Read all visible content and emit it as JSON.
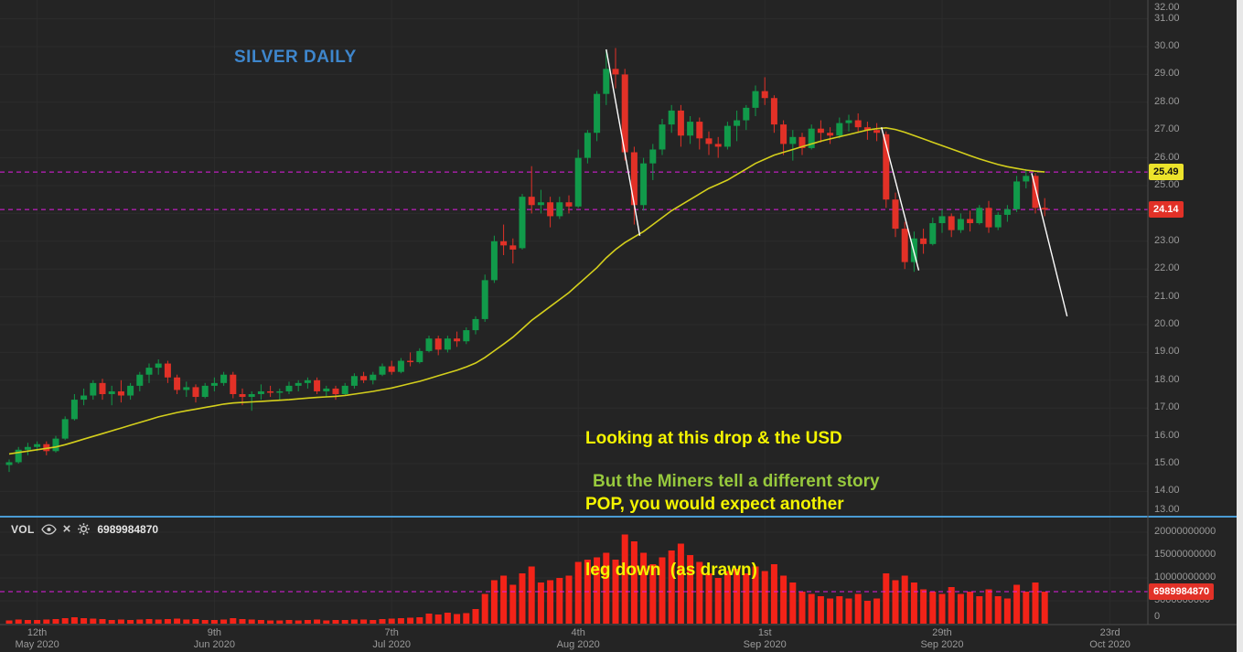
{
  "title": "SILVER DAILY",
  "annotations": {
    "yellow_lines": [
      "Looking at this drop & the USD",
      "POP, you would expect another",
      "leg down  (as drawn)"
    ],
    "green_note": "But the Miners tell a different story"
  },
  "volume_legend": {
    "label": "VOL",
    "value": "6989984870"
  },
  "price_axis": {
    "ticks": [
      "32.00",
      "31.00",
      "30.00",
      "29.00",
      "28.00",
      "27.00",
      "26.00",
      "25.00",
      "24.00",
      "23.00",
      "22.00",
      "21.00",
      "20.00",
      "19.00",
      "18.00",
      "17.00",
      "16.00",
      "15.00",
      "14.00",
      "13.00"
    ]
  },
  "volume_axis": {
    "ticks": [
      "20000000000",
      "15000000000",
      "10000000000",
      "5000000000",
      "0"
    ]
  },
  "chart_data": {
    "type": "candlestick",
    "title": "SILVER DAILY",
    "timeframe": "Daily",
    "x_labels": [
      {
        "i": 3,
        "day": "12th",
        "month": "May 2020"
      },
      {
        "i": 22,
        "day": "9th",
        "month": "Jun 2020"
      },
      {
        "i": 41,
        "day": "7th",
        "month": "Jul 2020"
      },
      {
        "i": 61,
        "day": "4th",
        "month": "Aug 2020"
      },
      {
        "i": 81,
        "day": "1st",
        "month": "Sep 2020"
      },
      {
        "i": 100,
        "day": "29th",
        "month": "Sep 2020"
      },
      {
        "i": 118,
        "day": "23rd",
        "month": "Oct 2020"
      }
    ],
    "price_range_visible": [
      13.1,
      31.7
    ],
    "volume_range_visible_billions": [
      0,
      23
    ],
    "candles_format": [
      "open",
      "high",
      "low",
      "close",
      "volume_billions",
      "ma_value"
    ],
    "candles": [
      [
        14.95,
        15.15,
        14.7,
        15.05,
        0.7,
        15.35
      ],
      [
        15.05,
        15.6,
        15.0,
        15.5,
        0.9,
        15.4
      ],
      [
        15.5,
        15.75,
        15.3,
        15.6,
        0.8,
        15.45
      ],
      [
        15.6,
        15.8,
        15.45,
        15.7,
        0.8,
        15.5
      ],
      [
        15.7,
        15.8,
        15.3,
        15.45,
        0.9,
        15.55
      ],
      [
        15.45,
        16.0,
        15.4,
        15.9,
        1.0,
        15.6
      ],
      [
        15.9,
        16.7,
        15.85,
        16.6,
        1.2,
        15.68
      ],
      [
        16.6,
        17.5,
        16.55,
        17.3,
        1.4,
        15.78
      ],
      [
        17.3,
        17.7,
        17.1,
        17.45,
        1.2,
        15.88
      ],
      [
        17.45,
        18.0,
        17.3,
        17.9,
        1.1,
        15.98
      ],
      [
        17.9,
        18.05,
        17.3,
        17.5,
        1.0,
        16.08
      ],
      [
        17.5,
        17.8,
        17.1,
        17.6,
        0.8,
        16.18
      ],
      [
        17.6,
        18.0,
        17.2,
        17.45,
        0.9,
        16.28
      ],
      [
        17.45,
        17.9,
        17.3,
        17.8,
        0.8,
        16.38
      ],
      [
        17.8,
        18.3,
        17.6,
        18.2,
        0.9,
        16.48
      ],
      [
        18.2,
        18.6,
        17.9,
        18.45,
        1.0,
        16.58
      ],
      [
        18.45,
        18.75,
        18.2,
        18.6,
        0.9,
        16.68
      ],
      [
        18.6,
        18.7,
        17.9,
        18.1,
        1.0,
        16.76
      ],
      [
        18.1,
        18.2,
        17.5,
        17.65,
        1.1,
        16.84
      ],
      [
        17.65,
        17.95,
        17.4,
        17.75,
        0.9,
        16.9
      ],
      [
        17.75,
        17.85,
        17.2,
        17.4,
        1.0,
        16.96
      ],
      [
        17.4,
        17.9,
        17.35,
        17.8,
        0.8,
        17.02
      ],
      [
        17.8,
        18.1,
        17.6,
        17.9,
        0.8,
        17.08
      ],
      [
        17.9,
        18.3,
        17.8,
        18.2,
        0.9,
        17.14
      ],
      [
        18.2,
        18.3,
        17.35,
        17.5,
        1.2,
        17.18
      ],
      [
        17.5,
        17.7,
        17.1,
        17.4,
        1.0,
        17.2
      ],
      [
        17.4,
        17.6,
        16.9,
        17.5,
        0.9,
        17.22
      ],
      [
        17.5,
        17.85,
        17.3,
        17.6,
        0.8,
        17.24
      ],
      [
        17.6,
        17.8,
        17.4,
        17.55,
        0.7,
        17.26
      ],
      [
        17.55,
        17.7,
        17.3,
        17.6,
        0.7,
        17.28
      ],
      [
        17.6,
        17.95,
        17.5,
        17.8,
        0.8,
        17.3
      ],
      [
        17.8,
        18.0,
        17.6,
        17.9,
        0.7,
        17.33
      ],
      [
        17.9,
        18.1,
        17.7,
        18.0,
        0.8,
        17.36
      ],
      [
        18.0,
        18.1,
        17.5,
        17.6,
        0.9,
        17.38
      ],
      [
        17.6,
        17.8,
        17.4,
        17.7,
        0.7,
        17.4
      ],
      [
        17.7,
        17.8,
        17.3,
        17.5,
        0.8,
        17.42
      ],
      [
        17.5,
        17.9,
        17.45,
        17.8,
        0.8,
        17.45
      ],
      [
        17.8,
        18.25,
        17.7,
        18.15,
        0.9,
        17.5
      ],
      [
        18.15,
        18.3,
        17.9,
        18.0,
        0.9,
        17.55
      ],
      [
        18.0,
        18.3,
        17.85,
        18.2,
        0.8,
        17.6
      ],
      [
        18.2,
        18.6,
        18.15,
        18.5,
        1.0,
        17.66
      ],
      [
        18.5,
        18.7,
        18.2,
        18.3,
        1.1,
        17.72
      ],
      [
        18.3,
        18.8,
        18.25,
        18.7,
        1.2,
        17.8
      ],
      [
        18.7,
        19.0,
        18.5,
        18.65,
        1.3,
        17.88
      ],
      [
        18.65,
        19.15,
        18.6,
        19.05,
        1.4,
        17.96
      ],
      [
        19.05,
        19.6,
        19.0,
        19.5,
        2.2,
        18.06
      ],
      [
        19.5,
        19.6,
        18.9,
        19.1,
        2.0,
        18.16
      ],
      [
        19.1,
        19.6,
        19.0,
        19.5,
        2.4,
        18.26
      ],
      [
        19.5,
        19.75,
        19.2,
        19.4,
        2.1,
        18.36
      ],
      [
        19.4,
        19.9,
        19.3,
        19.8,
        2.3,
        18.48
      ],
      [
        19.8,
        20.3,
        19.65,
        20.2,
        3.2,
        18.62
      ],
      [
        20.2,
        21.8,
        20.1,
        21.6,
        6.5,
        18.82
      ],
      [
        21.6,
        23.2,
        21.5,
        23.0,
        9.5,
        19.06
      ],
      [
        23.0,
        23.6,
        22.5,
        22.85,
        10.5,
        19.3
      ],
      [
        22.85,
        23.1,
        22.2,
        22.7,
        8.5,
        19.55
      ],
      [
        22.75,
        24.7,
        22.7,
        24.6,
        11.0,
        19.85
      ],
      [
        24.6,
        25.7,
        24.0,
        24.3,
        12.5,
        20.15
      ],
      [
        24.3,
        24.85,
        24.0,
        24.4,
        9.0,
        20.4
      ],
      [
        24.4,
        24.6,
        23.5,
        23.9,
        9.5,
        20.65
      ],
      [
        23.9,
        24.6,
        23.8,
        24.4,
        10.0,
        20.9
      ],
      [
        24.4,
        24.65,
        24.0,
        24.25,
        10.5,
        21.15
      ],
      [
        24.25,
        26.3,
        24.2,
        26.0,
        13.5,
        21.45
      ],
      [
        26.0,
        27.0,
        25.8,
        26.9,
        14.0,
        21.75
      ],
      [
        26.9,
        28.4,
        26.6,
        28.3,
        14.5,
        22.05
      ],
      [
        28.3,
        29.9,
        27.9,
        29.2,
        15.5,
        22.4
      ],
      [
        29.2,
        29.95,
        28.5,
        29.0,
        14.0,
        22.7
      ],
      [
        29.0,
        29.2,
        25.9,
        26.2,
        19.5,
        22.95
      ],
      [
        26.2,
        26.4,
        23.6,
        24.3,
        18.0,
        23.15
      ],
      [
        24.3,
        26.0,
        24.1,
        25.8,
        15.5,
        23.35
      ],
      [
        25.8,
        26.5,
        25.2,
        26.3,
        13.0,
        23.6
      ],
      [
        26.3,
        27.4,
        26.1,
        27.2,
        14.5,
        23.85
      ],
      [
        27.2,
        27.9,
        26.9,
        27.7,
        16.0,
        24.1
      ],
      [
        27.7,
        27.9,
        26.4,
        26.8,
        17.5,
        24.3
      ],
      [
        26.8,
        27.5,
        26.5,
        27.3,
        15.0,
        24.5
      ],
      [
        27.3,
        27.45,
        26.3,
        26.7,
        13.5,
        24.7
      ],
      [
        26.7,
        26.95,
        26.1,
        26.5,
        11.0,
        24.9
      ],
      [
        26.5,
        26.75,
        26.0,
        26.4,
        10.0,
        25.05
      ],
      [
        26.4,
        27.3,
        26.3,
        27.15,
        11.5,
        25.2
      ],
      [
        27.15,
        27.7,
        26.6,
        27.35,
        12.0,
        25.4
      ],
      [
        27.35,
        27.9,
        27.0,
        27.8,
        11.0,
        25.6
      ],
      [
        27.8,
        28.6,
        27.5,
        28.4,
        12.5,
        25.8
      ],
      [
        28.4,
        28.9,
        27.9,
        28.15,
        11.5,
        25.95
      ],
      [
        28.15,
        28.25,
        26.9,
        27.2,
        13.0,
        26.1
      ],
      [
        27.2,
        27.35,
        26.1,
        26.5,
        10.5,
        26.2
      ],
      [
        26.5,
        27.0,
        25.9,
        26.75,
        9.0,
        26.3
      ],
      [
        26.75,
        26.9,
        26.1,
        26.35,
        7.0,
        26.4
      ],
      [
        26.35,
        27.2,
        26.3,
        27.05,
        6.5,
        26.5
      ],
      [
        27.05,
        27.35,
        26.55,
        26.9,
        6.0,
        26.6
      ],
      [
        26.9,
        27.1,
        26.5,
        26.8,
        5.5,
        26.68
      ],
      [
        26.8,
        27.45,
        26.7,
        27.25,
        6.0,
        26.76
      ],
      [
        27.25,
        27.55,
        26.95,
        27.35,
        5.5,
        26.84
      ],
      [
        27.35,
        27.6,
        26.9,
        27.1,
        6.5,
        26.92
      ],
      [
        27.1,
        27.3,
        26.65,
        27.0,
        5.0,
        27.0
      ],
      [
        27.0,
        27.25,
        26.6,
        26.9,
        5.5,
        27.05
      ],
      [
        26.85,
        26.95,
        24.2,
        24.5,
        11.0,
        27.08
      ],
      [
        24.5,
        24.75,
        23.15,
        23.45,
        9.5,
        27.02
      ],
      [
        23.45,
        23.7,
        22.0,
        22.25,
        10.5,
        26.92
      ],
      [
        22.25,
        23.35,
        21.9,
        23.1,
        9.0,
        26.8
      ],
      [
        23.1,
        23.45,
        22.55,
        22.9,
        7.5,
        26.68
      ],
      [
        22.9,
        23.85,
        22.85,
        23.65,
        7.0,
        26.56
      ],
      [
        23.65,
        24.15,
        23.3,
        23.9,
        6.5,
        26.44
      ],
      [
        23.9,
        24.0,
        23.15,
        23.4,
        8.0,
        26.32
      ],
      [
        23.4,
        24.0,
        23.3,
        23.8,
        6.5,
        26.2
      ],
      [
        23.8,
        24.1,
        23.35,
        23.65,
        7.0,
        26.08
      ],
      [
        23.65,
        24.3,
        23.6,
        24.2,
        6.0,
        25.96
      ],
      [
        24.2,
        24.45,
        23.3,
        23.5,
        7.5,
        25.86
      ],
      [
        23.5,
        24.05,
        23.4,
        23.95,
        6.0,
        25.76
      ],
      [
        23.95,
        24.3,
        23.7,
        24.15,
        5.5,
        25.68
      ],
      [
        24.15,
        25.35,
        24.05,
        25.15,
        8.5,
        25.62
      ],
      [
        25.15,
        25.6,
        24.9,
        25.35,
        7.0,
        25.56
      ],
      [
        25.35,
        25.45,
        24.0,
        24.2,
        9.0,
        25.52
      ],
      [
        24.2,
        24.55,
        23.9,
        24.14,
        6.99,
        25.49
      ]
    ],
    "price_lines": [
      {
        "price": 25.49,
        "label": "25.49",
        "badge_bg": "#ece32b",
        "badge_fg": "#111111"
      },
      {
        "price": 24.14,
        "label": "24.14",
        "badge_bg": "#e23127",
        "badge_fg": "#ffffff"
      }
    ],
    "volume_line": {
      "value_billions": 6.99,
      "label": "6989984870",
      "badge_bg": "#e23127",
      "badge_fg": "#ffffff"
    },
    "trendlines": [
      {
        "i1": 64,
        "p1": 29.9,
        "i2": 67.6,
        "p2": 23.2
      },
      {
        "i1": 93.5,
        "p1": 27.1,
        "i2": 97.5,
        "p2": 21.95
      },
      {
        "i1": 109.6,
        "p1": 25.45,
        "i2": 113.4,
        "p2": 20.3
      }
    ],
    "colors": {
      "background": "#242424",
      "grid": "#2c2c2c",
      "axis_text": "#9a9a9a",
      "up": "#119a4a",
      "down": "#e23127",
      "volume_bar": "#f32318",
      "ma_line": "#d4cf1c",
      "trendline": "#ffffff",
      "level_line": "#e21ce2",
      "pane_separator": "#4a9bd2",
      "axis_border": "#4d4d4d",
      "title": "#3e86cc",
      "note_yellow": "#f4f400",
      "note_green": "#97c93d"
    }
  }
}
